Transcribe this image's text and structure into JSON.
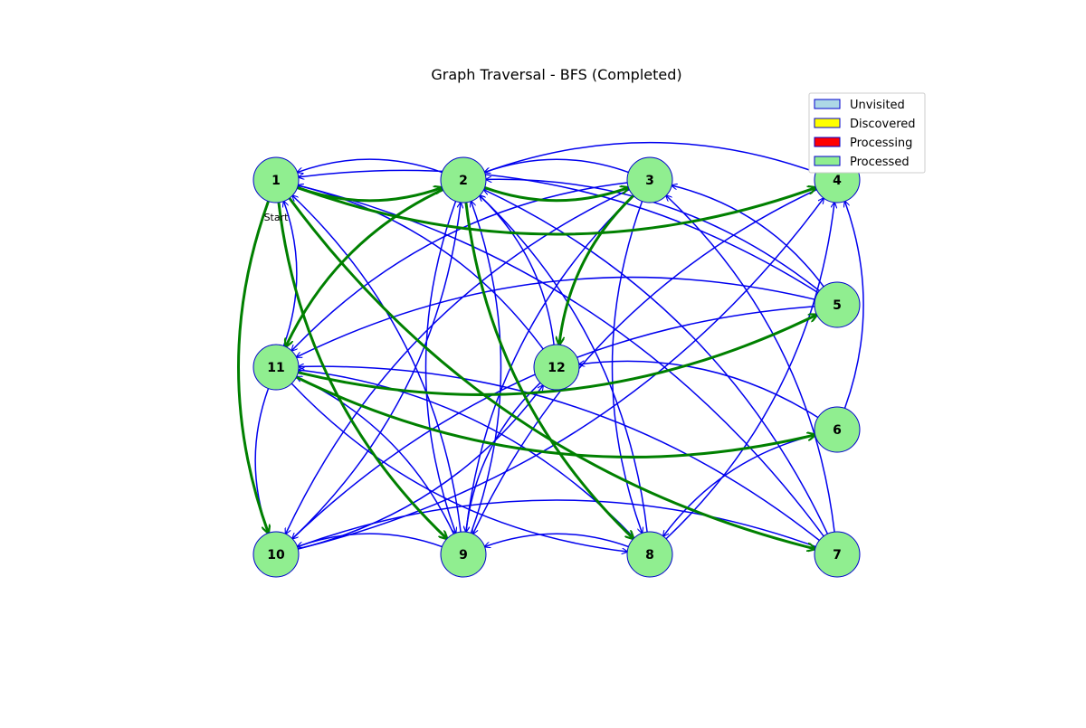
{
  "title": "Graph Traversal - BFS (Completed)",
  "start_label": "Start",
  "colors": {
    "unvisited": "#add8e6",
    "discovered": "#ffff00",
    "processing": "#ff0000",
    "processed": "#90ee90",
    "node_border": "#0000cd",
    "edge": "#0000ee",
    "tree_edge": "#008000"
  },
  "legend": [
    {
      "label": "Unvisited",
      "color_key": "unvisited"
    },
    {
      "label": "Discovered",
      "color_key": "discovered"
    },
    {
      "label": "Processing",
      "color_key": "processing"
    },
    {
      "label": "Processed",
      "color_key": "processed"
    }
  ],
  "nodes": [
    {
      "id": "1",
      "state": "processed",
      "start": true
    },
    {
      "id": "2",
      "state": "processed"
    },
    {
      "id": "3",
      "state": "processed"
    },
    {
      "id": "4",
      "state": "processed"
    },
    {
      "id": "5",
      "state": "processed"
    },
    {
      "id": "6",
      "state": "processed"
    },
    {
      "id": "7",
      "state": "processed"
    },
    {
      "id": "8",
      "state": "processed"
    },
    {
      "id": "9",
      "state": "processed"
    },
    {
      "id": "10",
      "state": "processed"
    },
    {
      "id": "11",
      "state": "processed"
    },
    {
      "id": "12",
      "state": "processed"
    }
  ],
  "tree_edges": [
    [
      "1",
      "2"
    ],
    [
      "1",
      "4"
    ],
    [
      "1",
      "9"
    ],
    [
      "1",
      "10"
    ],
    [
      "1",
      "7"
    ],
    [
      "2",
      "11"
    ],
    [
      "2",
      "8"
    ],
    [
      "2",
      "3"
    ],
    [
      "3",
      "12"
    ],
    [
      "11",
      "5"
    ],
    [
      "11",
      "6"
    ]
  ],
  "edges": [
    [
      "2",
      "1"
    ],
    [
      "3",
      "2"
    ],
    [
      "4",
      "2"
    ],
    [
      "3",
      "11"
    ],
    [
      "3",
      "10"
    ],
    [
      "3",
      "9"
    ],
    [
      "3",
      "8"
    ],
    [
      "5",
      "3"
    ],
    [
      "5",
      "11"
    ],
    [
      "5",
      "2"
    ],
    [
      "5",
      "10"
    ],
    [
      "6",
      "4"
    ],
    [
      "6",
      "12"
    ],
    [
      "6",
      "8"
    ],
    [
      "7",
      "1"
    ],
    [
      "7",
      "3"
    ],
    [
      "7",
      "2"
    ],
    [
      "7",
      "10"
    ],
    [
      "7",
      "11"
    ],
    [
      "8",
      "9"
    ],
    [
      "8",
      "4"
    ],
    [
      "8",
      "11"
    ],
    [
      "8",
      "2"
    ],
    [
      "9",
      "10"
    ],
    [
      "9",
      "11"
    ],
    [
      "9",
      "1"
    ],
    [
      "9",
      "2"
    ],
    [
      "10",
      "2"
    ],
    [
      "10",
      "4"
    ],
    [
      "10",
      "12"
    ],
    [
      "11",
      "1"
    ],
    [
      "11",
      "10"
    ],
    [
      "12",
      "1"
    ],
    [
      "12",
      "2"
    ],
    [
      "12",
      "9"
    ],
    [
      "5",
      "1"
    ],
    [
      "4",
      "9"
    ],
    [
      "2",
      "9"
    ],
    [
      "11",
      "8"
    ]
  ]
}
